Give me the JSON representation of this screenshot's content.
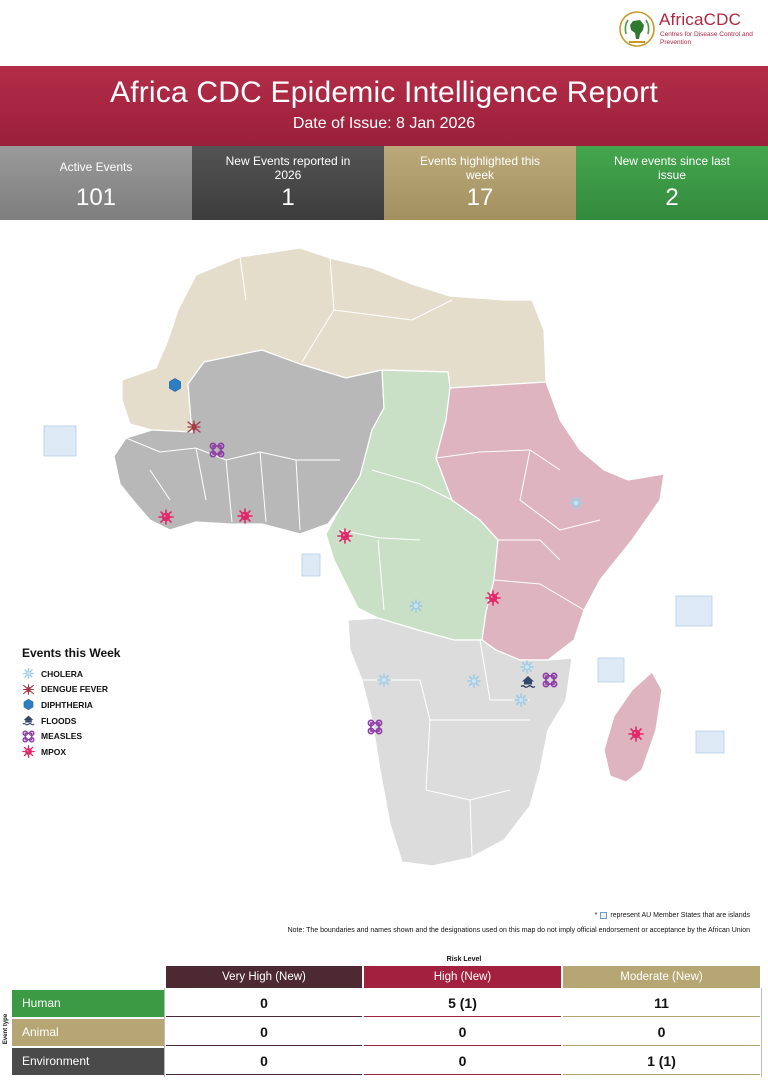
{
  "logo": {
    "name": "AfricaCDC",
    "tagline": "Centres for Disease Control and Prevention"
  },
  "header": {
    "title": "Africa CDC Epidemic Intelligence Report",
    "date": "Date of Issue: 8 Jan 2026"
  },
  "stats": [
    {
      "label": "Active Events",
      "value": "101",
      "color": "#8c8c8c"
    },
    {
      "label": "New Events reported in 2026",
      "value": "1",
      "color": "#474747"
    },
    {
      "label": "Events highlighted this week",
      "value": "17",
      "color": "#b09d6c"
    },
    {
      "label": "New events since last issue",
      "value": "2",
      "color": "#3d9a46"
    }
  ],
  "region_colors": {
    "north": "#e4ddcb",
    "west": "#b8b8b8",
    "central": "#c9e0c6",
    "east": "#ddb4bf",
    "south": "#dcdcdc",
    "islands": "#dde9f4"
  },
  "legend": {
    "title": "Events this Week",
    "items": [
      {
        "label": "CHOLERA",
        "icon": "cholera-icon",
        "color": "#9ccbe6"
      },
      {
        "label": "DENGUE FEVER",
        "icon": "dengue-icon",
        "color": "#a63a46"
      },
      {
        "label": "DIPHTHERIA",
        "icon": "diphtheria-icon",
        "color": "#2e7fc2"
      },
      {
        "label": "FLOODS",
        "icon": "floods-icon",
        "color": "#34476b"
      },
      {
        "label": "MEASLES",
        "icon": "measles-icon",
        "color": "#8e3fa6"
      },
      {
        "label": "MPOX",
        "icon": "mpox-icon",
        "color": "#e0286a"
      }
    ]
  },
  "notes": {
    "islands_prefix": "*",
    "islands_text": "represent AU Member States that are islands",
    "disclaimer": "Note: The boundaries and names shown and the designations used on this map do not imply official endorsement or acceptance by the African Union"
  },
  "risk_table": {
    "title": "Risk Level",
    "axis_label": "Event type",
    "columns": [
      "Very High (New)",
      "High (New)",
      "Moderate (New)"
    ],
    "rows": [
      {
        "label": "Human",
        "values": [
          "0",
          "5 (1)",
          "11"
        ]
      },
      {
        "label": "Animal",
        "values": [
          "0",
          "0",
          "0"
        ]
      },
      {
        "label": "Environment",
        "values": [
          "0",
          "0",
          "1 (1)"
        ]
      }
    ]
  }
}
